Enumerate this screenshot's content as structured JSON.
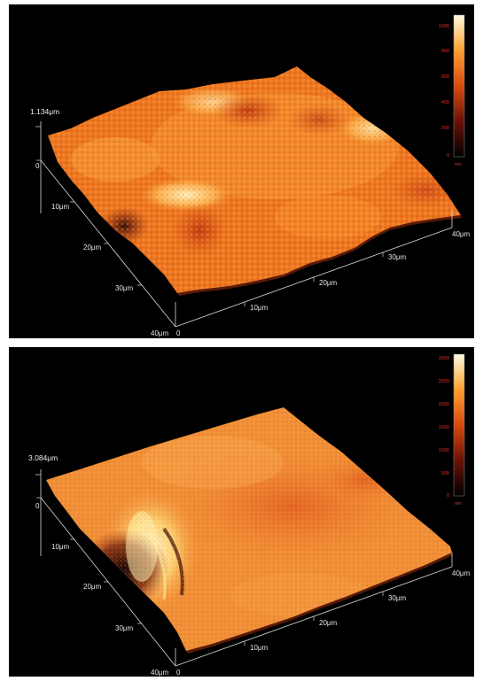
{
  "panels": [
    {
      "id": "top",
      "z_max_label": "1.134μm",
      "axis_left_labels": [
        "0",
        "10μm",
        "20μm",
        "30μm",
        "40μm"
      ],
      "axis_front_labels": [
        "0",
        "10μm",
        "20μm",
        "30μm",
        "40μm"
      ],
      "colorbar": {
        "ticks": [
          "1000",
          "800",
          "600",
          "400",
          "200",
          "0"
        ],
        "unit": "nm"
      }
    },
    {
      "id": "bottom",
      "z_max_label": "3.084μm",
      "axis_left_labels": [
        "0",
        "10μm",
        "20μm",
        "30μm",
        "40μm"
      ],
      "axis_front_labels": [
        "0",
        "10μm",
        "20μm",
        "30μm",
        "40μm"
      ],
      "colorbar": {
        "ticks": [
          "3000",
          "2500",
          "2000",
          "1500",
          "1000",
          "500",
          "0"
        ],
        "unit": "nm"
      }
    }
  ],
  "colors": {
    "background": "#000000",
    "surface_base": "#f07a1e",
    "surface_high": "#fff7c0",
    "surface_low": "#3a0a0a",
    "tick_text": "#e03030"
  }
}
